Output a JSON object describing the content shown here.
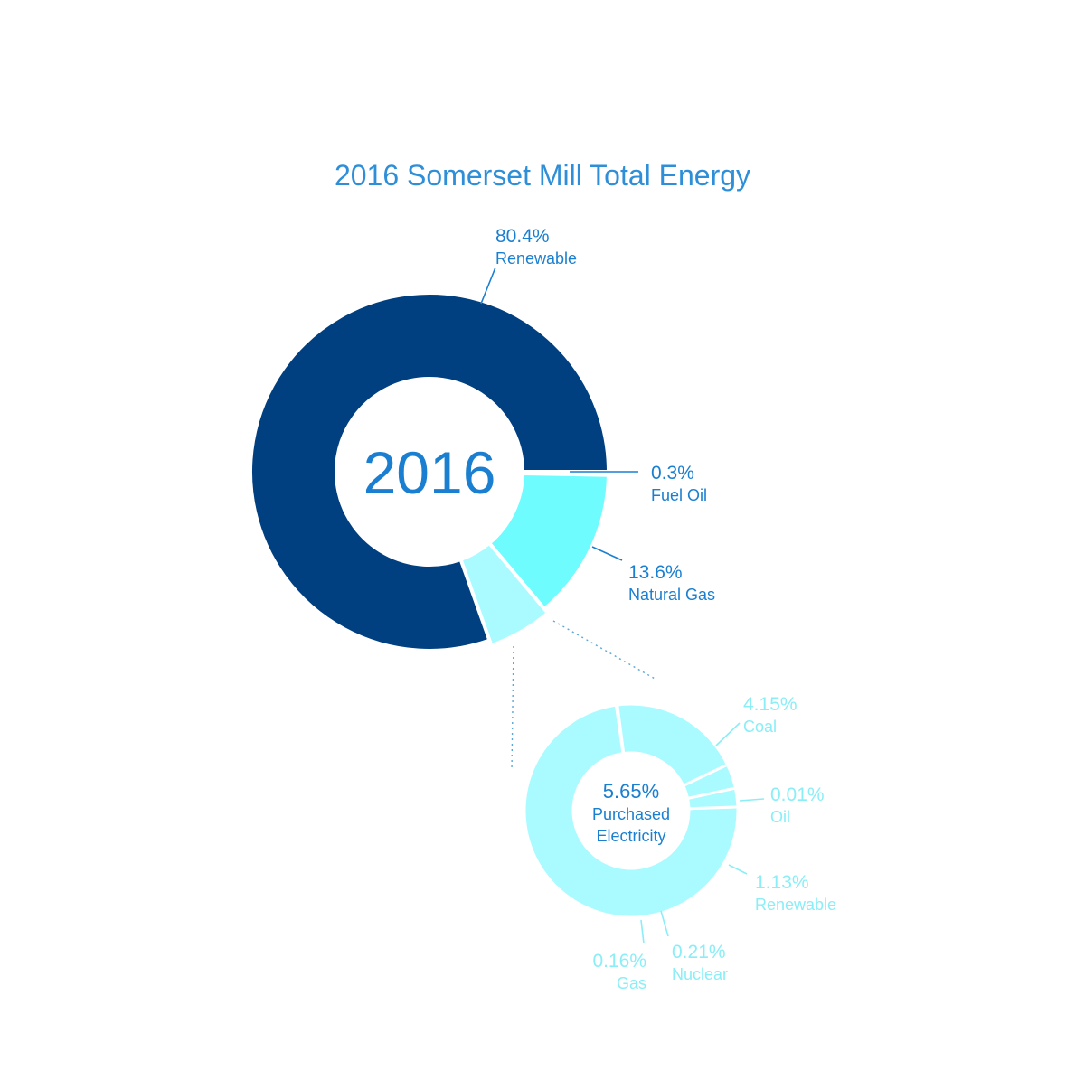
{
  "colors": {
    "title": "#2e8fd8",
    "main_label": "#1a7fd0",
    "renewable": "#003f80",
    "natural_gas": "#6efcff",
    "fuel_oil": "#6efcff",
    "purchased": "#aafbff",
    "sub_label": "#8aeef7",
    "sub_center_label": "#1a7fd0",
    "background": "#ffffff"
  },
  "chart_data": [
    {
      "type": "pie",
      "variant": "donut",
      "title": "2016 Somerset Mill Total Energy",
      "center_label": "2016",
      "slices": [
        {
          "label": "Fuel Oil",
          "value": 0.3,
          "display": "0.3%"
        },
        {
          "label": "Natural Gas",
          "value": 13.6,
          "display": "13.6%"
        },
        {
          "label": "Purchased Electricity",
          "value": 5.65,
          "display": "5.65%"
        },
        {
          "label": "Renewable",
          "value": 80.4,
          "display": "80.4%"
        }
      ]
    },
    {
      "type": "pie",
      "variant": "donut",
      "title": "",
      "center_label": [
        "5.65%",
        "Purchased",
        "Electricity"
      ],
      "slices": [
        {
          "label": "Coal",
          "value": 4.15,
          "display": "4.15%"
        },
        {
          "label": "Oil",
          "value": 0.01,
          "display": "0.01%"
        },
        {
          "label": "Renewable",
          "value": 1.13,
          "display": "1.13%"
        },
        {
          "label": "Nuclear",
          "value": 0.21,
          "display": "0.21%"
        },
        {
          "label": "Gas",
          "value": 0.16,
          "display": "0.16%"
        }
      ]
    }
  ]
}
